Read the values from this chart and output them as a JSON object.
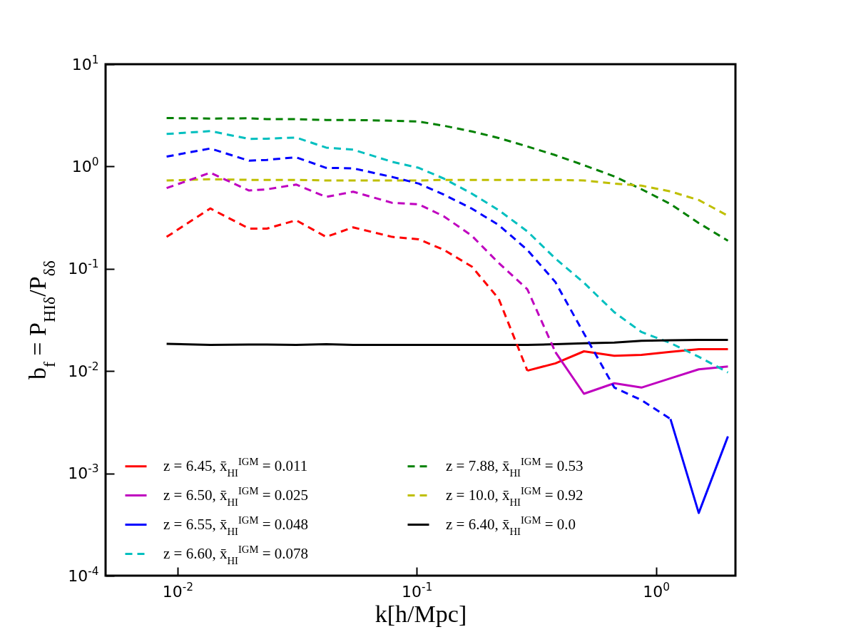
{
  "chart_data": {
    "type": "line",
    "xlabel": "k[h/Mpc]",
    "ylabel": "b$_{f}$ = P$_{HIδ}$/P$_{δδ}$",
    "log": "xy",
    "grid": false,
    "legend": "bottom left",
    "marker": "none",
    "xlim": [
      0.005,
      2.15
    ],
    "ylim": [
      0.0001,
      10
    ],
    "xticks": [
      {
        "value": 0.01,
        "label": "10$^{-2}$"
      },
      {
        "value": 0.1,
        "label": "10$^{-1}$"
      },
      {
        "value": 1,
        "label": "10$^{0}$"
      }
    ],
    "yticks": [
      {
        "value": 0.0001,
        "label": "10$^{-4}$"
      },
      {
        "value": 0.001,
        "label": "10$^{-3}$"
      },
      {
        "value": 0.01,
        "label": "10$^{-2}$"
      },
      {
        "value": 0.1,
        "label": "10$^{-1}$"
      },
      {
        "value": 1,
        "label": "10$^{0}$"
      },
      {
        "value": 10,
        "label": "10$^{1}$"
      }
    ],
    "x": [
      0.009,
      0.0137,
      0.0199,
      0.0236,
      0.0313,
      0.0418,
      0.0542,
      0.079,
      0.102,
      0.13,
      0.17,
      0.22,
      0.29,
      0.38,
      0.5,
      0.67,
      0.87,
      1.15,
      1.51,
      2.0
    ],
    "series": [
      {
        "name": "z = 6.45, x̄$_{HI}$$^{IGM}$ = 0.011",
        "color": "#ff0000",
        "line_style": "solid",
        "values": [
          null,
          null,
          null,
          null,
          null,
          null,
          null,
          null,
          null,
          null,
          null,
          null,
          0.0101,
          0.0119,
          0.0156,
          0.0141,
          0.0144,
          0.0154,
          0.0164,
          0.0164
        ]
      },
      {
        "name": "z = 6.50, x̄$_{HI}$$^{IGM}$ = 0.025",
        "color": "#bf00bf",
        "line_style": "solid",
        "values": [
          null,
          null,
          null,
          null,
          null,
          null,
          null,
          null,
          null,
          null,
          null,
          null,
          null,
          0.0153,
          0.006,
          0.0076,
          0.0069,
          0.0085,
          0.0104,
          0.0111
        ]
      },
      {
        "name": "z = 6.55, x̄$_{HI}$$^{IGM}$ = 0.048",
        "color": "#0000ff",
        "line_style": "solid",
        "values": [
          null,
          null,
          null,
          null,
          null,
          null,
          null,
          null,
          null,
          null,
          null,
          null,
          null,
          null,
          null,
          null,
          null,
          0.0034,
          0.00041,
          0.0023
        ]
      },
      {
        "name": "z = 6.60, x̄$_{HI}$$^{IGM}$ = 0.078",
        "color": "#00bfbf",
        "line_style": "dashed",
        "values": [
          2.08,
          2.22,
          1.86,
          1.87,
          1.92,
          1.53,
          1.46,
          1.11,
          0.97,
          0.76,
          0.543,
          0.375,
          0.232,
          0.126,
          0.073,
          0.0376,
          0.0241,
          0.0188,
          0.0138,
          0.0097
        ]
      },
      {
        "name": "z = 7.88, x̄$_{HI}$$^{IGM}$ = 0.53",
        "color": "#008000",
        "line_style": "dashed",
        "values": [
          2.98,
          2.94,
          2.96,
          2.9,
          2.9,
          2.85,
          2.85,
          2.8,
          2.75,
          2.5,
          2.2,
          1.9,
          1.57,
          1.29,
          1.03,
          0.8,
          0.6,
          0.43,
          0.28,
          0.188
        ]
      },
      {
        "name": "z = 10.0, x̄$_{HI}$$^{IGM}$ = 0.92",
        "color": "#bfbf00",
        "line_style": "dashed",
        "values": [
          0.73,
          0.75,
          0.74,
          0.74,
          0.74,
          0.73,
          0.73,
          0.73,
          0.73,
          0.74,
          0.74,
          0.74,
          0.74,
          0.74,
          0.73,
          0.68,
          0.65,
          0.57,
          0.47,
          0.33
        ]
      },
      {
        "name": "z = 6.40, x̄$_{HI}$$^{IGM}$ = 0.0",
        "color": "#000000",
        "line_style": "solid",
        "values": [
          0.0185,
          0.018,
          0.0182,
          0.0182,
          0.018,
          0.0183,
          0.018,
          0.018,
          0.018,
          0.018,
          0.018,
          0.018,
          0.018,
          0.0183,
          0.0187,
          0.019,
          0.0198,
          0.02,
          0.0202,
          0.0202
        ]
      },
      {
        "color": "#ff0000",
        "line_style": "dashed",
        "values": [
          0.205,
          0.389,
          0.247,
          0.247,
          0.298,
          0.205,
          0.254,
          0.205,
          0.194,
          0.153,
          0.105,
          0.051,
          0.0101,
          null,
          null,
          null,
          null,
          null,
          null,
          null
        ]
      },
      {
        "color": "#bf00bf",
        "line_style": "dashed",
        "values": [
          0.615,
          0.869,
          0.582,
          0.598,
          0.666,
          0.504,
          0.567,
          0.441,
          0.427,
          0.325,
          0.21,
          0.114,
          0.063,
          0.0153,
          null,
          null,
          null,
          null,
          null,
          null
        ]
      },
      {
        "color": "#0000ff",
        "line_style": "dashed",
        "values": [
          1.25,
          1.5,
          1.14,
          1.16,
          1.23,
          0.97,
          0.96,
          0.79,
          0.68,
          0.53,
          0.387,
          0.268,
          0.153,
          0.074,
          0.0233,
          0.0069,
          0.0052,
          0.0034,
          null,
          null
        ]
      }
    ]
  }
}
